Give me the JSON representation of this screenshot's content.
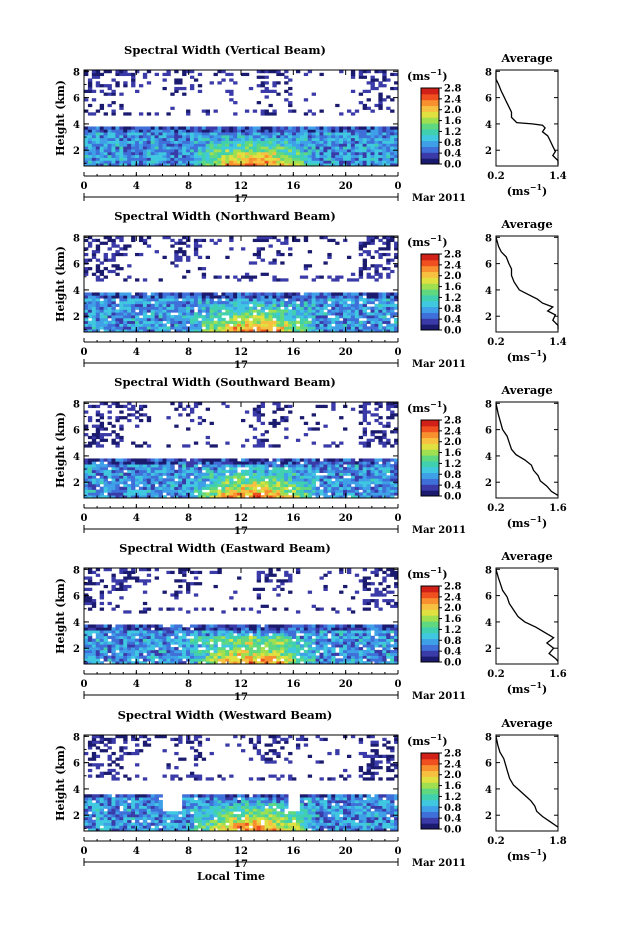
{
  "figure": {
    "xlabel": "Local Time",
    "date_label": "Mar 2011",
    "day_label": "17"
  },
  "colorbar": {
    "unit": "(ms",
    "unit_exp": "−1",
    "colors": [
      "#1a1a6e",
      "#3a3aa8",
      "#3f6fd8",
      "#3fa0e8",
      "#40c8e0",
      "#40d0b0",
      "#60d880",
      "#a0e050",
      "#e0e040",
      "#f8c040",
      "#f89030",
      "#f05020",
      "#d02018"
    ]
  },
  "chart_data": [
    {
      "type": "heatmap",
      "title": "Spectral Width (Vertical Beam)",
      "ylabel": "Height (km)",
      "x_ticks": [
        "0",
        "4",
        "8",
        "12",
        "16",
        "20",
        "0"
      ],
      "xlim": [
        0,
        24
      ],
      "y_ticks": [
        "2",
        "4",
        "6",
        "8"
      ],
      "ylim": [
        0.8,
        8.1
      ],
      "colorbar_ticks": [
        "0.0",
        "0.4",
        "0.8",
        "1.2",
        "1.6",
        "2.0",
        "2.4",
        "2.8"
      ],
      "colorbar_range": [
        0.0,
        2.8
      ],
      "avg": {
        "title": "Average",
        "xlabel": "(ms",
        "xlabel_exp": "−1",
        "x_ticks": [
          "0.2",
          "1.4"
        ],
        "xlim": [
          0.2,
          1.4
        ],
        "y_ticks": [
          "2",
          "4",
          "6",
          "8"
        ],
        "ylim": [
          0.8,
          8.1
        ],
        "profile": [
          [
            0.2,
            8.0
          ],
          [
            0.2,
            7.4
          ],
          [
            0.25,
            7.0
          ],
          [
            0.3,
            6.5
          ],
          [
            0.35,
            6.1
          ],
          [
            0.4,
            5.7
          ],
          [
            0.45,
            5.3
          ],
          [
            0.5,
            4.9
          ],
          [
            0.5,
            4.5
          ],
          [
            0.6,
            4.1
          ],
          [
            0.9,
            4.0
          ],
          [
            1.1,
            3.9
          ],
          [
            1.15,
            3.7
          ],
          [
            1.1,
            3.4
          ],
          [
            1.2,
            3.1
          ],
          [
            1.25,
            2.7
          ],
          [
            1.3,
            2.3
          ],
          [
            1.35,
            1.9
          ],
          [
            1.3,
            1.6
          ],
          [
            1.4,
            1.2
          ],
          [
            1.4,
            0.9
          ]
        ]
      }
    },
    {
      "type": "heatmap",
      "title": "Spectral Width (Northward Beam)",
      "ylabel": "Height (km)",
      "x_ticks": [
        "0",
        "4",
        "8",
        "12",
        "16",
        "20",
        "0"
      ],
      "xlim": [
        0,
        24
      ],
      "y_ticks": [
        "2",
        "4",
        "6",
        "8"
      ],
      "ylim": [
        0.8,
        8.1
      ],
      "colorbar_ticks": [
        "0.0",
        "0.4",
        "0.8",
        "1.2",
        "1.6",
        "2.0",
        "2.4",
        "2.8"
      ],
      "colorbar_range": [
        0.0,
        2.8
      ],
      "avg": {
        "title": "Average",
        "xlabel": "(ms",
        "xlabel_exp": "−1",
        "x_ticks": [
          "0.2",
          "1.4"
        ],
        "xlim": [
          0.2,
          1.4
        ],
        "y_ticks": [
          "2",
          "4",
          "6",
          "8"
        ],
        "ylim": [
          0.8,
          8.1
        ],
        "profile": [
          [
            0.2,
            8.0
          ],
          [
            0.25,
            7.3
          ],
          [
            0.3,
            6.9
          ],
          [
            0.4,
            6.5
          ],
          [
            0.45,
            6.0
          ],
          [
            0.5,
            5.6
          ],
          [
            0.5,
            5.1
          ],
          [
            0.55,
            4.6
          ],
          [
            0.65,
            4.0
          ],
          [
            0.85,
            3.6
          ],
          [
            1.0,
            3.3
          ],
          [
            1.1,
            3.0
          ],
          [
            1.3,
            2.7
          ],
          [
            1.2,
            2.4
          ],
          [
            1.35,
            2.1
          ],
          [
            1.3,
            1.7
          ],
          [
            1.4,
            1.3
          ],
          [
            1.4,
            1.0
          ]
        ]
      }
    },
    {
      "type": "heatmap",
      "title": "Spectral Width (Southward Beam)",
      "ylabel": "Height (km)",
      "x_ticks": [
        "0",
        "4",
        "8",
        "12",
        "16",
        "20",
        "0"
      ],
      "xlim": [
        0,
        24
      ],
      "y_ticks": [
        "2",
        "4",
        "6",
        "8"
      ],
      "ylim": [
        0.8,
        8.1
      ],
      "colorbar_ticks": [
        "0.0",
        "0.4",
        "0.8",
        "1.2",
        "1.6",
        "2.0",
        "2.4",
        "2.8"
      ],
      "colorbar_range": [
        0.0,
        2.8
      ],
      "avg": {
        "title": "Average",
        "xlabel": "(ms",
        "xlabel_exp": "−1",
        "x_ticks": [
          "0.2",
          "1.6"
        ],
        "xlim": [
          0.2,
          1.6
        ],
        "y_ticks": [
          "2",
          "4",
          "6",
          "8"
        ],
        "ylim": [
          0.8,
          8.1
        ],
        "profile": [
          [
            0.2,
            8.0
          ],
          [
            0.25,
            7.2
          ],
          [
            0.3,
            6.6
          ],
          [
            0.35,
            6.0
          ],
          [
            0.45,
            5.5
          ],
          [
            0.5,
            5.0
          ],
          [
            0.55,
            4.5
          ],
          [
            0.65,
            4.1
          ],
          [
            0.85,
            3.7
          ],
          [
            1.0,
            3.3
          ],
          [
            1.05,
            2.9
          ],
          [
            1.15,
            2.5
          ],
          [
            1.2,
            2.1
          ],
          [
            1.35,
            1.7
          ],
          [
            1.45,
            1.3
          ],
          [
            1.6,
            1.0
          ]
        ]
      }
    },
    {
      "type": "heatmap",
      "title": "Spectral Width (Eastward Beam)",
      "ylabel": "Height (km)",
      "x_ticks": [
        "0",
        "4",
        "8",
        "12",
        "16",
        "20",
        "0"
      ],
      "xlim": [
        0,
        24
      ],
      "y_ticks": [
        "2",
        "4",
        "6",
        "8"
      ],
      "ylim": [
        0.8,
        8.1
      ],
      "colorbar_ticks": [
        "0.0",
        "0.4",
        "0.8",
        "1.2",
        "1.6",
        "2.0",
        "2.4",
        "2.8"
      ],
      "colorbar_range": [
        0.0,
        2.8
      ],
      "avg": {
        "title": "Average",
        "xlabel": "(ms",
        "xlabel_exp": "−1",
        "x_ticks": [
          "0.2",
          "1.6"
        ],
        "xlim": [
          0.2,
          1.6
        ],
        "y_ticks": [
          "2",
          "4",
          "6",
          "8"
        ],
        "ylim": [
          0.8,
          8.1
        ],
        "profile": [
          [
            0.2,
            8.0
          ],
          [
            0.25,
            7.4
          ],
          [
            0.3,
            6.9
          ],
          [
            0.35,
            6.4
          ],
          [
            0.45,
            5.9
          ],
          [
            0.5,
            5.4
          ],
          [
            0.6,
            4.9
          ],
          [
            0.7,
            4.4
          ],
          [
            0.85,
            4.0
          ],
          [
            1.1,
            3.6
          ],
          [
            1.3,
            3.2
          ],
          [
            1.5,
            2.8
          ],
          [
            1.35,
            2.4
          ],
          [
            1.5,
            2.0
          ],
          [
            1.4,
            1.6
          ],
          [
            1.55,
            1.2
          ],
          [
            1.6,
            1.0
          ]
        ]
      }
    },
    {
      "type": "heatmap",
      "title": "Spectral Width (Westward Beam)",
      "ylabel": "Height (km)",
      "x_ticks": [
        "0",
        "4",
        "8",
        "12",
        "16",
        "20",
        "0"
      ],
      "xlim": [
        0,
        24
      ],
      "y_ticks": [
        "2",
        "4",
        "6",
        "8"
      ],
      "ylim": [
        0.8,
        8.1
      ],
      "colorbar_ticks": [
        "0.0",
        "0.4",
        "0.8",
        "1.2",
        "1.6",
        "2.0",
        "2.4",
        "2.8"
      ],
      "colorbar_range": [
        0.0,
        2.8
      ],
      "avg": {
        "title": "Average",
        "xlabel": "(ms",
        "xlabel_exp": "−1",
        "x_ticks": [
          "0.2",
          "1.8"
        ],
        "xlim": [
          0.2,
          1.8
        ],
        "y_ticks": [
          "2",
          "4",
          "6",
          "8"
        ],
        "ylim": [
          0.8,
          8.1
        ],
        "profile": [
          [
            0.2,
            8.0
          ],
          [
            0.25,
            7.3
          ],
          [
            0.3,
            6.8
          ],
          [
            0.4,
            6.3
          ],
          [
            0.45,
            5.8
          ],
          [
            0.5,
            5.3
          ],
          [
            0.55,
            4.8
          ],
          [
            0.65,
            4.3
          ],
          [
            0.8,
            3.9
          ],
          [
            0.95,
            3.5
          ],
          [
            1.1,
            3.1
          ],
          [
            1.2,
            2.7
          ],
          [
            1.25,
            2.3
          ],
          [
            1.4,
            1.9
          ],
          [
            1.6,
            1.5
          ],
          [
            1.8,
            1.1
          ]
        ]
      }
    }
  ]
}
